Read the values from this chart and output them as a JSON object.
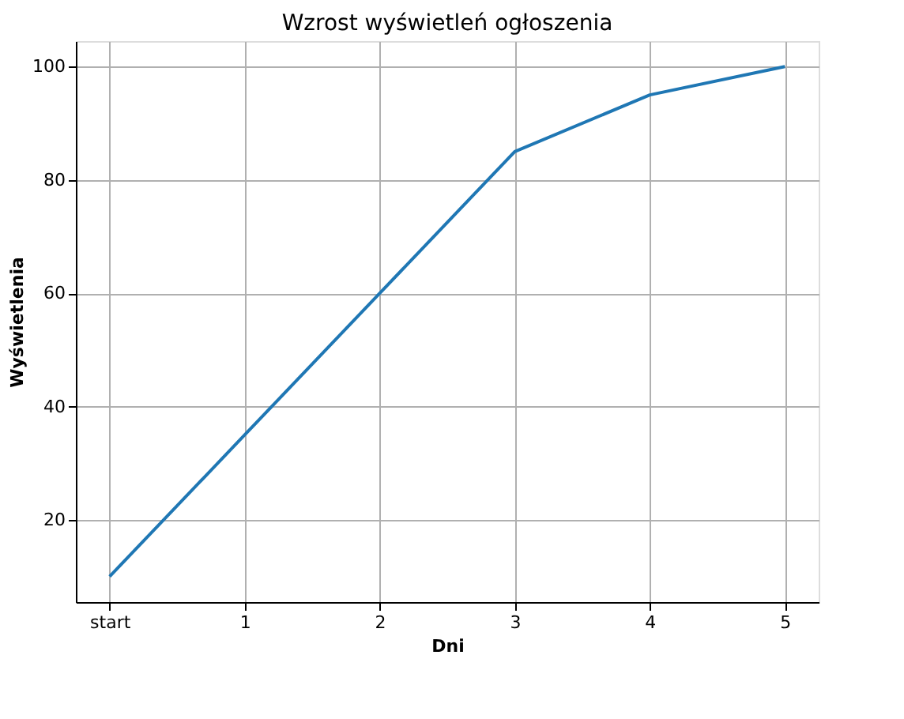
{
  "chart_data": {
    "type": "line",
    "title": "Wzrost wyświetleń ogłoszenia",
    "xlabel": "Dni",
    "ylabel": "Wyświetlenia",
    "categories": [
      "start",
      "1",
      "2",
      "3",
      "4",
      "5"
    ],
    "series": [
      {
        "color": "#1f77b4",
        "values": [
          10,
          35,
          60,
          85,
          95,
          100
        ]
      }
    ],
    "ylim": [
      5.5,
      104.5
    ],
    "yticks": [
      20,
      40,
      60,
      80,
      100
    ],
    "grid": true,
    "marker": "none",
    "line_style": "solid"
  }
}
